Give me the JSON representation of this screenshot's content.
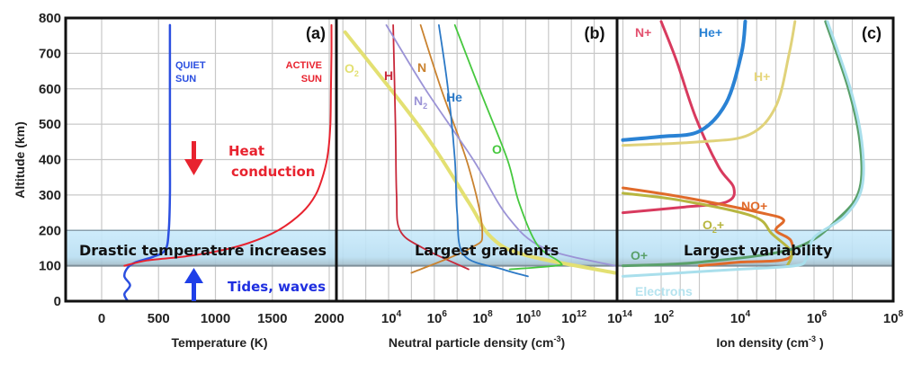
{
  "chart_data": [
    {
      "panel": "(a)",
      "type": "line",
      "xlabel": "Temperature (K)",
      "ylabel": "Altitude (km)",
      "xscale": "linear",
      "xlim": [
        -300,
        2050
      ],
      "ylim": [
        0,
        800
      ],
      "xticks": [
        0,
        500,
        1000,
        1500,
        2000
      ],
      "yticks": [
        0,
        100,
        200,
        300,
        400,
        500,
        600,
        700,
        800
      ],
      "grid": true,
      "series": [
        {
          "name": "QUIET SUN",
          "label": "QUIET\nSUN",
          "color": "#2b4fe0",
          "points": [
            [
              230,
              0
            ],
            [
              200,
              20
            ],
            [
              250,
              45
            ],
            [
              200,
              70
            ],
            [
              230,
              95
            ],
            [
              300,
              110
            ],
            [
              450,
              125
            ],
            [
              560,
              145
            ],
            [
              590,
              200
            ],
            [
              600,
              300
            ],
            [
              600,
              400
            ],
            [
              600,
              500
            ],
            [
              600,
              600
            ],
            [
              600,
              700
            ],
            [
              600,
              780
            ]
          ]
        },
        {
          "name": "ACTIVE SUN",
          "label": "ACTIVE\nSUN",
          "color": "#e8232f",
          "points": [
            [
              200,
              100
            ],
            [
              400,
              115
            ],
            [
              700,
              125
            ],
            [
              1000,
              140
            ],
            [
              1300,
              165
            ],
            [
              1550,
              200
            ],
            [
              1760,
              250
            ],
            [
              1880,
              300
            ],
            [
              1950,
              360
            ],
            [
              1990,
              420
            ],
            [
              2010,
              500
            ],
            [
              2015,
              600
            ],
            [
              2020,
              700
            ],
            [
              2020,
              780
            ]
          ]
        }
      ],
      "annotations": [
        {
          "text": "Heat",
          "color": "#e8232f"
        },
        {
          "text": "conduction",
          "color": "#e8232f"
        },
        {
          "text": "Tides, waves",
          "color": "#1f2fe0"
        },
        {
          "text": "Drastic temperature increases",
          "color": "#111111"
        }
      ],
      "arrows": [
        {
          "name": "heat-conduction-arrow",
          "direction": "down",
          "color": "#e8232f"
        },
        {
          "name": "tides-waves-arrow",
          "direction": "up",
          "color": "#1f3fe8"
        }
      ]
    },
    {
      "panel": "(b)",
      "type": "line",
      "xlabel": "Neutral particle density (cm⁻³)",
      "xscale": "log",
      "xlim_exp": [
        2,
        14
      ],
      "ylim": [
        0,
        800
      ],
      "xtick_labels": [
        "10^4",
        "10^6",
        "10^8",
        "10^10",
        "10^12",
        "10^14"
      ],
      "grid": true,
      "series": [
        {
          "name": "O2",
          "label": "O₂",
          "color": "#e3e072",
          "points": [
            [
              2.1,
              760
            ],
            [
              5.5,
              480
            ],
            [
              7.5,
              280
            ],
            [
              8.5,
              180
            ],
            [
              10,
              130
            ],
            [
              13.9,
              80
            ]
          ]
        },
        {
          "name": "H",
          "label": "H",
          "color": "#c8283a",
          "points": [
            [
              4.2,
              780
            ],
            [
              4.3,
              500
            ],
            [
              4.35,
              300
            ],
            [
              4.5,
              200
            ],
            [
              5.5,
              150
            ],
            [
              7.5,
              90
            ]
          ]
        },
        {
          "name": "N",
          "label": "N",
          "color": "#c9822f",
          "points": [
            [
              5.4,
              780
            ],
            [
              6.3,
              600
            ],
            [
              7.5,
              380
            ],
            [
              8.1,
              200
            ],
            [
              7.6,
              150
            ],
            [
              5,
              80
            ]
          ]
        },
        {
          "name": "N2",
          "label": "N₂",
          "color": "#9b93d6",
          "points": [
            [
              3.9,
              780
            ],
            [
              5.6,
              600
            ],
            [
              7.7,
              400
            ],
            [
              9.2,
              240
            ],
            [
              10.8,
              150
            ],
            [
              13.9,
              100
            ]
          ]
        },
        {
          "name": "He",
          "label": "He",
          "color": "#2c79c6",
          "points": [
            [
              6.2,
              780
            ],
            [
              6.6,
              600
            ],
            [
              6.9,
              400
            ],
            [
              7,
              250
            ],
            [
              7.3,
              130
            ],
            [
              9,
              90
            ],
            [
              10.1,
              70
            ]
          ]
        },
        {
          "name": "O",
          "label": "O",
          "color": "#46c83e",
          "points": [
            [
              6.9,
              780
            ],
            [
              8.1,
              580
            ],
            [
              9.2,
              400
            ],
            [
              9.7,
              280
            ],
            [
              10.5,
              160
            ],
            [
              11.5,
              110
            ],
            [
              11.3,
              100
            ],
            [
              9.3,
              90
            ]
          ]
        }
      ],
      "annotations": [
        {
          "text": "Largest  gradients",
          "color": "#111111"
        }
      ]
    },
    {
      "panel": "(c)",
      "type": "line",
      "xlabel": "Ion density (cm⁻³ )",
      "xscale": "log",
      "xlim_exp": [
        0.9,
        8
      ],
      "ylim": [
        0,
        800
      ],
      "xtick_labels": [
        "10^2",
        "10^4",
        "10^6",
        "10^8"
      ],
      "grid": true,
      "series": [
        {
          "name": "N+",
          "label": "N+",
          "color": "#d83a5e",
          "points": [
            [
              2.0,
              790
            ],
            [
              2.4,
              680
            ],
            [
              2.9,
              520
            ],
            [
              3.5,
              380
            ],
            [
              3.9,
              320
            ],
            [
              3.7,
              280
            ],
            [
              2.5,
              265
            ],
            [
              1.0,
              250
            ]
          ]
        },
        {
          "name": "He+",
          "label": "He+",
          "color": "#2a82d4",
          "points": [
            [
              4.2,
              790
            ],
            [
              4.1,
              700
            ],
            [
              3.7,
              560
            ],
            [
              3.0,
              480
            ],
            [
              2.0,
              465
            ],
            [
              1.0,
              455
            ]
          ]
        },
        {
          "name": "H+",
          "label": "H+",
          "color": "#e0d27a",
          "points": [
            [
              5.5,
              790
            ],
            [
              5.35,
              700
            ],
            [
              5.0,
              550
            ],
            [
              4.3,
              470
            ],
            [
              3.0,
              450
            ],
            [
              1.0,
              440
            ]
          ]
        },
        {
          "name": "NO+",
          "label": "NO+",
          "color": "#e06a2a",
          "points": [
            [
              1.0,
              320
            ],
            [
              2.5,
              295
            ],
            [
              4.6,
              250
            ],
            [
              5.2,
              230
            ],
            [
              5.0,
              200
            ],
            [
              5.4,
              170
            ],
            [
              5.3,
              120
            ],
            [
              4.0,
              110
            ],
            [
              3.0,
              100
            ]
          ]
        },
        {
          "name": "O2+",
          "label": "O₂+",
          "color": "#b7b640",
          "points": [
            [
              1.0,
              305
            ],
            [
              2.5,
              285
            ],
            [
              4.4,
              240
            ],
            [
              4.9,
              190
            ],
            [
              5.4,
              140
            ],
            [
              5.3,
              100
            ]
          ]
        },
        {
          "name": "O+",
          "label": "O+",
          "color": "#5aa06a",
          "points": [
            [
              6.3,
              790
            ],
            [
              6.9,
              600
            ],
            [
              7.2,
              450
            ],
            [
              7.2,
              320
            ],
            [
              6.7,
              240
            ],
            [
              5.5,
              150
            ],
            [
              3.0,
              110
            ],
            [
              1.0,
              100
            ]
          ]
        },
        {
          "name": "Electrons",
          "label": "Electrons",
          "color": "#a9dfec",
          "points": [
            [
              6.35,
              790
            ],
            [
              6.95,
              600
            ],
            [
              7.25,
              450
            ],
            [
              7.25,
              320
            ],
            [
              6.8,
              240
            ],
            [
              6.0,
              180
            ],
            [
              5.8,
              120
            ],
            [
              5.5,
              100
            ],
            [
              4.0,
              90
            ],
            [
              2.5,
              80
            ],
            [
              1.0,
              70
            ]
          ]
        }
      ],
      "annotations": [
        {
          "text": "Largest variability",
          "color": "#111111"
        }
      ]
    }
  ],
  "labels": {
    "panel_a": "(a)",
    "panel_b": "(b)",
    "panel_c": "(c)",
    "ylabel": "Altitude (km)",
    "xlabel_a": "Temperature (K)",
    "xlabel_b": "Neutral particle density (cm",
    "xlabel_c": "Ion density (cm",
    "unit_exp": "-3",
    "unit_close_b": ")",
    "unit_close_c": " )",
    "band_a": "Drastic temperature increases",
    "band_b": "Largest  gradients",
    "band_c": "Largest variability",
    "heat_1": "Heat",
    "heat_2": "conduction",
    "tides": "Tides, waves",
    "quiet_1": "QUIET",
    "quiet_2": "SUN",
    "active_1": "ACTIVE",
    "active_2": "SUN"
  },
  "band_km": [
    100,
    200
  ],
  "colors": {
    "band_fill": "#bfe3f5",
    "band_edge": "#8aa0ad",
    "grid": "#c8c8c8",
    "frame": "#111111"
  }
}
